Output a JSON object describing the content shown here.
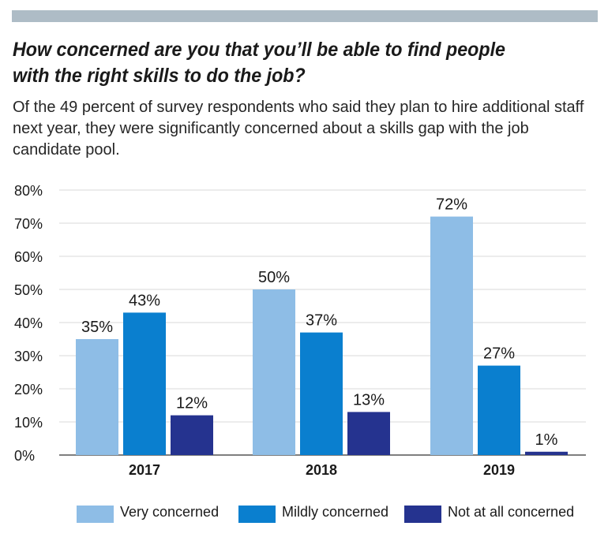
{
  "header": {
    "title": "How concerned are you that you’ll be able to find people with the right skills to do the job?",
    "subtitle": "Of the 49 percent of survey respondents who said they plan to hire additional staff next year, they were significantly concerned about a skills gap with the job candidate pool."
  },
  "colors": {
    "top_bar": "#aebcc6",
    "grid": "#d9d9d9",
    "axis": "#555555"
  },
  "chart_data": {
    "type": "bar",
    "categories": [
      "2017",
      "2018",
      "2019"
    ],
    "series": [
      {
        "name": "Very concerned",
        "color": "#8ebde6",
        "values": [
          35,
          50,
          72
        ],
        "labels": [
          "35%",
          "50%",
          "72%"
        ]
      },
      {
        "name": "Mildly concerned",
        "color": "#0a7fcf",
        "values": [
          43,
          37,
          27
        ],
        "labels": [
          "43%",
          "37%",
          "27%"
        ]
      },
      {
        "name": "Not at all concerned",
        "color": "#25338f",
        "values": [
          12,
          13,
          1
        ],
        "labels": [
          "12%",
          "13%",
          "1%"
        ]
      }
    ],
    "ylim": [
      0,
      80
    ],
    "yticks": [
      0,
      10,
      20,
      30,
      40,
      50,
      60,
      70,
      80
    ],
    "ytick_labels": [
      "0%",
      "10%",
      "20%",
      "30%",
      "40%",
      "50%",
      "60%",
      "70%",
      "80%"
    ],
    "grid": true,
    "legend_position": "bottom"
  }
}
